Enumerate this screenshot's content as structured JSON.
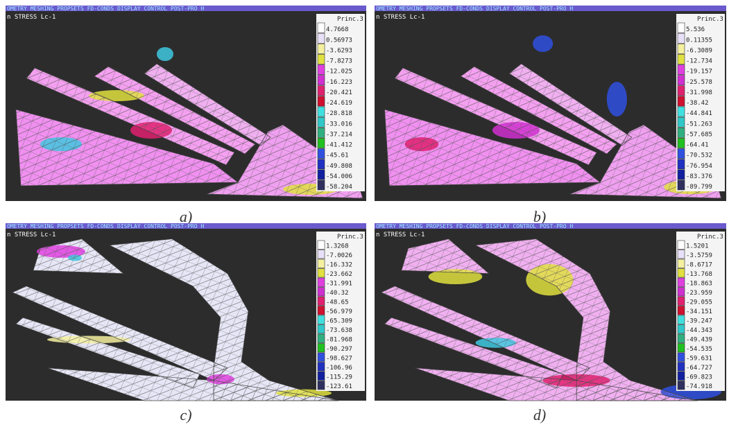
{
  "panels": [
    {
      "menu": "OMETRY MESHING  PROPSETS FD-CONDS DISPLAY  CONTROL  POST-PRO H",
      "view_title": "n STRESS Lc-1",
      "legend": {
        "title": "Princ.3",
        "values": [
          "4.7668",
          "0.56973",
          "-3.6293",
          "-7.8273",
          "-12.025",
          "-16.223",
          "-20.421",
          "-24.619",
          "-28.818",
          "-33.016",
          "-37.214",
          "-41.412",
          "-45.61",
          "-49.808",
          "-54.006",
          "-58.204"
        ]
      },
      "caption": "a)"
    },
    {
      "menu": "OMETRY MESHING  PROPSETS FD-CONDS DISPLAY  CONTROL  POST-PRO H",
      "view_title": "n STRESS Lc-1",
      "legend": {
        "title": "Princ.3",
        "values": [
          "5.536",
          "0.11355",
          "-6.3089",
          "-12.734",
          "-19.157",
          "-25.578",
          "-31.998",
          "-38.42",
          "-44.841",
          "-51.263",
          "-57.685",
          "-64.41",
          "-70.532",
          "-76.954",
          "-83.376",
          "-89.799"
        ]
      },
      "caption": "b)"
    },
    {
      "menu": "OMETRY MESHING  PROPSETS FD-CONDS DISPLAY  CONTROL  POST-PRO H",
      "view_title": "n STRESS Lc-1",
      "legend": {
        "title": "Princ.3",
        "values": [
          "1.3268",
          "-7.0026",
          "-16.332",
          "-23.662",
          "-31.991",
          "-40.32",
          "-48.65",
          "-56.979",
          "-65.309",
          "-73.638",
          "-81.968",
          "-90.297",
          "-98.627",
          "-106.96",
          "-115.29",
          "-123.61"
        ]
      },
      "caption": "c)"
    },
    {
      "menu": "OMETRY MESHING  PROPSETS FD-CONDS DISPLAY  CONTROL  POST-PRO H",
      "view_title": "n STRESS Lc-1",
      "legend": {
        "title": "Princ.3",
        "values": [
          "1.5201",
          "-3.5759",
          "-8.6717",
          "-13.768",
          "-18.863",
          "-23.959",
          "-29.055",
          "-34.151",
          "-39.247",
          "-44.343",
          "-49.439",
          "-54.535",
          "-59.631",
          "-64.727",
          "-69.823",
          "-74.918"
        ]
      },
      "caption": "d)"
    }
  ]
}
